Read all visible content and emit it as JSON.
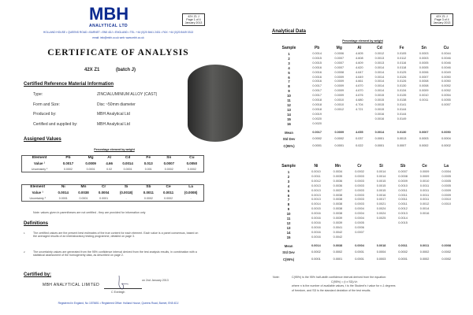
{
  "left_page": {
    "logo": {
      "name": "MBH",
      "sub": "ANALYTICAL LTD"
    },
    "page_box": [
      "42X Z1 J",
      "Page 1 of 4",
      "January 2013"
    ],
    "address": "HOLLAND HOUSE • QUEENS ROAD • BARNET • EN5 4DJ • ENGLAND • TEL: +44 (0)20 8441 2431 • FAX: +44 (0)20 8449 0313",
    "contact": "email: info@mbh.co.uk   web: www.mbh.co.uk",
    "title": "CERTIFICATE OF ANALYSIS",
    "product": "42X Z1",
    "batch": "(batch J)",
    "info_heading": "Certified Reference Material Information",
    "info": [
      {
        "label": "Type:",
        "value": "ZINC/ALUMINIUM ALLOY    (CAST)"
      },
      {
        "label": "Form and Size:",
        "value": "Disc ~50mm diameter"
      },
      {
        "label": "Produced by:",
        "value": "MBH Analytical Ltd"
      },
      {
        "label": "Certified and supplied by:",
        "value": "MBH Analytical Ltd"
      }
    ],
    "assigned_heading": "Assigned Values",
    "caption": "Percentage element by weight",
    "table1": {
      "element": [
        "Element",
        "Pb",
        "Mg",
        "Al",
        "Cd",
        "Fe",
        "Sn",
        "Cu"
      ],
      "value": [
        "Value ¹",
        "0.0017",
        "0.0009",
        "4.66",
        "0.0014",
        "0.013",
        "0.0007",
        "0.0050"
      ],
      "uncertainty": [
        "Uncertainty ²",
        "0.0002",
        "0.0001",
        "0.02",
        "0.0001",
        "0.001",
        "0.0002",
        "0.0002"
      ]
    },
    "table2": {
      "element": [
        "Element",
        "Ni",
        "Mn",
        "Cr",
        "Si",
        "Sb",
        "Ce",
        "La"
      ],
      "value": [
        "Value ¹",
        "0.0014",
        "0.0038",
        "0.0004",
        "(0.0018)",
        "0.0011",
        "0.0011",
        "(0.0008)"
      ],
      "uncertainty": [
        "Uncertainty ²",
        "0.0001",
        "0.0001",
        "0.0001",
        "-",
        "0.0002",
        "0.0002",
        "-"
      ]
    },
    "note": "Note:  values given in parentheses are not certified - they are provided for information only",
    "definitions_heading": "Definitions",
    "definitions": [
      {
        "mark": "1",
        "text": "The certified values are the present best estimates of the true content for each element.  Each value is a panel consensus, based on the averaged results of an interlaboratory testing programme, detailed on page 3."
      },
      {
        "mark": "2",
        "text": "The uncertainty values are generated from the 95% confidence interval derived from the test analysis results, in combination with a statistical assessment of the homogeneity data, as described on page 2."
      }
    ],
    "certified_heading": "Certified by:",
    "company": "MBH  ANALYTICAL  LIMITED",
    "date": "on 2nd January 2013",
    "signatory": "C Eveleigh",
    "footer": "Registered in England, No 1575651 • Registered Office: Holland House, Queens Road, Barnet, EN5 4DJ"
  },
  "right_page": {
    "page_box": [
      "42X Z1 J",
      "Page 3 of 4",
      "January 2013"
    ],
    "heading": "Analytical Data",
    "caption": "Percentage element by weight",
    "table1": {
      "headers": [
        "Sample",
        "Pb",
        "Mg",
        "Al",
        "Cd",
        "Fe",
        "Sn",
        "Cu"
      ],
      "columns": [
        [
          "0.0014",
          "0.0015",
          "0.0015",
          "0.0016",
          "0.0016",
          "0.0016",
          "0.0016",
          "0.0017",
          "0.0017",
          "0.0017",
          "0.0018",
          "0.0018",
          "0.0018",
          "0.0019",
          "0.0020",
          "0.0020"
        ],
        [
          "0.0006",
          "0.0007",
          "0.0007",
          "0.0007",
          "0.0008",
          "0.0009",
          "0.0009",
          "0.0009",
          "0.0009",
          "0.0009",
          "0.0010",
          "0.0010",
          "0.0012"
        ],
        [
          "4.605",
          "4.608",
          "4.609",
          "4.620",
          "4.647",
          "4.649",
          "4.661",
          "4.670",
          "4.670",
          "4.676",
          "4.680",
          "4.704",
          "4.721"
        ],
        [
          "0.0012",
          "0.0013",
          "0.0013",
          "0.0014",
          "0.0014",
          "0.0014",
          "0.0014",
          "0.0014",
          "0.0014",
          "0.0015",
          "0.0015",
          "0.0015",
          "0.0015",
          "0.0016",
          "0.0016"
        ],
        [
          "0.0105",
          "0.0112",
          "0.0116",
          "0.0118",
          "0.0125",
          "0.0126",
          "0.0126",
          "0.0130",
          "0.0134",
          "0.0135",
          "0.0138",
          "0.0141",
          "0.0144",
          "0.0144",
          "0.0149"
        ],
        [
          "0.0003",
          "0.0003",
          "0.0005",
          "0.0005",
          "0.0006",
          "0.0007",
          "0.0008",
          "0.0008",
          "0.0009",
          "0.0010",
          "0.0011"
        ],
        [
          "0.0044",
          "0.0046",
          "0.0046",
          "0.0046",
          "0.0049",
          "0.0050",
          "0.0050",
          "0.0052",
          "0.0052",
          "0.0054",
          "0.0055",
          "0.0057"
        ]
      ],
      "stats": [
        {
          "label": "Mean",
          "values": [
            "0.0017",
            "0.0009",
            "4.655",
            "0.0014",
            "0.0130",
            "0.0007",
            "0.0050"
          ]
        },
        {
          "label": "Std Dev",
          "values": [
            "0.0002",
            "0.0002",
            "0.037",
            "0.0001",
            "0.0013",
            "0.0003",
            "0.0004"
          ]
        },
        {
          "label": "C(95%)",
          "values": [
            "0.0001",
            "0.0001",
            "0.022",
            "0.0001",
            "0.0007",
            "0.0002",
            "0.0002"
          ]
        }
      ]
    },
    "table2": {
      "headers": [
        "Sample",
        "Ni",
        "Mn",
        "Cr",
        "Si",
        "Sb",
        "Ce",
        "La"
      ],
      "columns": [
        [
          "0.0010",
          "0.0011",
          "0.0012",
          "0.0013",
          "0.0013",
          "0.0013",
          "0.0013",
          "0.0014",
          "0.0015",
          "0.0016",
          "0.0016",
          "0.0016",
          "0.0016",
          "0.0016",
          "0.0016"
        ],
        [
          "0.0034",
          "0.0035",
          "0.0036",
          "0.0036",
          "0.0037",
          "0.0038",
          "0.0038",
          "0.0038",
          "0.0038",
          "0.0038",
          "0.0039",
          "0.0039",
          "0.0041",
          "0.0042",
          "0.0042"
        ],
        [
          "0.0002",
          "0.0003",
          "0.0003",
          "0.0003",
          "0.0003",
          "0.0003",
          "0.0003",
          "0.0003",
          "0.0004",
          "0.0004",
          "0.0004",
          "0.0005",
          "0.0006",
          "0.0007"
        ],
        [
          "0.0014",
          "0.0014",
          "0.0015",
          "0.0015",
          "0.0015",
          "0.0016",
          "0.0017",
          "0.0021",
          "0.0024",
          "0.0024",
          "0.0025"
        ],
        [
          "0.0007",
          "0.0008",
          "0.0009",
          "0.0010",
          "0.0011",
          "0.0011",
          "0.0011",
          "0.0011",
          "0.0012",
          "0.0013",
          "0.0014",
          "0.0015"
        ],
        [
          "0.0009",
          "0.0009",
          "0.0010",
          "0.0011",
          "0.0011",
          "0.0011",
          "0.0011",
          "0.0012",
          "0.0014",
          "0.0016"
        ],
        [
          "0.0004",
          "0.0005",
          "0.0005",
          "0.0005",
          "0.0009",
          "0.0009",
          "0.0010",
          "0.0010"
        ]
      ],
      "stats": [
        {
          "label": "Mean",
          "values": [
            "0.0014",
            "0.0038",
            "0.0004",
            "0.0018",
            "0.0011",
            "0.0011",
            "0.0008"
          ]
        },
        {
          "label": "Std Dev",
          "values": [
            "0.0002",
            "0.0002",
            "0.0001",
            "0.0004",
            "0.0002",
            "0.0002",
            "0.0002"
          ]
        },
        {
          "label": "C(95%)",
          "values": [
            "0.0001",
            "0.0001",
            "0.0001",
            "0.0003",
            "0.0001",
            "0.0002",
            "0.0002"
          ]
        }
      ]
    },
    "note_label": "Note:",
    "note_lines": [
      "C(95%) is the 95% half-width confidence interval derived from the equation:",
      "C(95%) = (t x SD)/√n",
      "where n is the number of available values, t is the Student's t value for n-1 degrees",
      "of freedom, and SD is the standard deviation of the test results."
    ]
  },
  "colors": {
    "brand": "#0b2a8f",
    "address": "#2244aa"
  }
}
